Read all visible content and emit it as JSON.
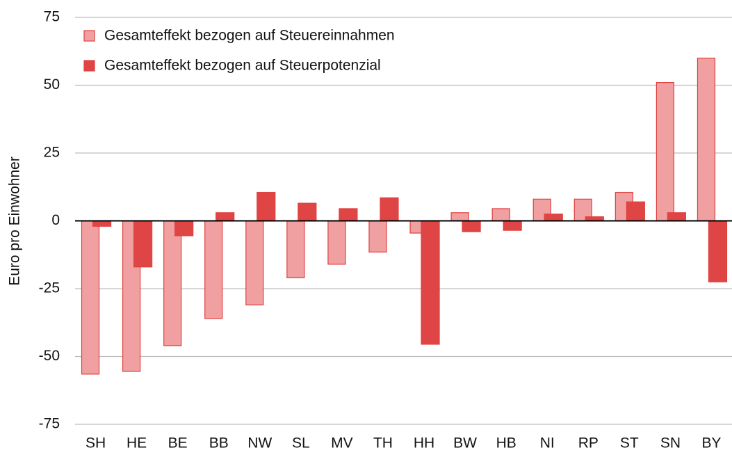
{
  "chart_data": {
    "type": "bar",
    "y_label": "Euro pro Einwohner",
    "categories": [
      "SH",
      "HE",
      "BE",
      "BB",
      "NW",
      "SL",
      "MV",
      "TH",
      "HH",
      "BW",
      "HB",
      "NI",
      "RP",
      "ST",
      "SN",
      "BY"
    ],
    "series": [
      {
        "name": "Gesamteffekt bezogen auf Steuereinnahmen",
        "color": "#f0a0a0",
        "values": [
          -56.5,
          -55.5,
          -46,
          -36,
          -31,
          -21,
          -16,
          -11.5,
          -4.5,
          3,
          4.5,
          8,
          8,
          10.5,
          51,
          60
        ]
      },
      {
        "name": "Gesamteffekt bezogen auf Steuerpotenzial",
        "color": "#e04545",
        "values": [
          -2,
          -17,
          -5.5,
          3,
          10.5,
          6.5,
          4.5,
          8.5,
          -45.5,
          -4,
          -3.5,
          2.5,
          1.5,
          7,
          3,
          -22.5
        ]
      }
    ],
    "ylim": [
      -75,
      75
    ],
    "yticks": [
      -75,
      -50,
      -25,
      0,
      25,
      50,
      75
    ],
    "grid": true,
    "legend": "top-left"
  }
}
